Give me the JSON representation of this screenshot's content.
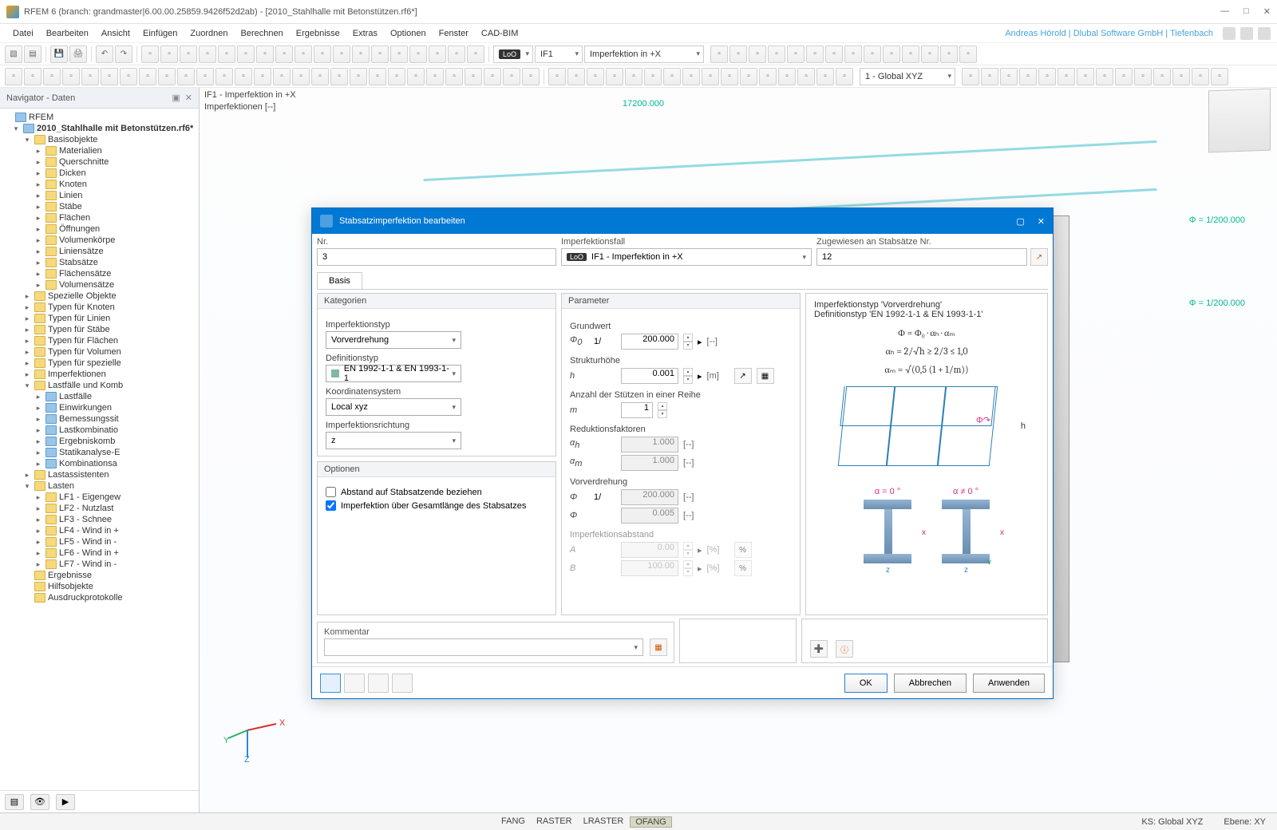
{
  "window": {
    "title": "RFEM 6 (branch: grandmaster|6.00.00.25859.9426f52d2ab) - [2010_Stahlhalle mit Betonstützen.rf6*]"
  },
  "menu": {
    "items": [
      "Datei",
      "Bearbeiten",
      "Ansicht",
      "Einfügen",
      "Zuordnen",
      "Berechnen",
      "Ergebnisse",
      "Extras",
      "Optionen",
      "Fenster",
      "CAD-BIM"
    ],
    "user": "Andreas Hörold | Dlubal Software GmbH | Tiefenbach"
  },
  "toolbar1": {
    "lookup": {
      "label": "IF1",
      "pill": "LoO"
    },
    "combo": "Imperfektion in +X"
  },
  "toolbar2": {
    "coord": "1 - Global XYZ"
  },
  "navigator": {
    "title": "Navigator - Daten",
    "root": "RFEM",
    "model": "2010_Stahlhalle mit Betonstützen.rf6*",
    "basis": "Basisobjekte",
    "basisItems": [
      "Materialien",
      "Querschnitte",
      "Dicken",
      "Knoten",
      "Linien",
      "Stäbe",
      "Flächen",
      "Öffnungen",
      "Volumenkörpe",
      "Liniensätze",
      "Stabsätze",
      "Flächensätze",
      "Volumensätze"
    ],
    "topFolders": [
      "Spezielle Objekte",
      "Typen für Knoten",
      "Typen für Linien",
      "Typen für Stäbe",
      "Typen für Flächen",
      "Typen für Volumen",
      "Typen für spezielle",
      "Imperfektionen"
    ],
    "lastfall": "Lastfälle und Komb",
    "lastfallItems": [
      "Lastfälle",
      "Einwirkungen",
      "Bemessungssit",
      "Lastkombinatio",
      "Ergebniskomb",
      "Statikanalyse-E",
      "Kombinationsa"
    ],
    "lastass": "Lastassistenten",
    "lasten": "Lasten",
    "lastenItems": [
      "LF1 - Eigengew",
      "LF2 - Nutzlast",
      "LF3 - Schnee",
      "LF4 - Wind in +",
      "LF5 - Wind in -",
      "LF6 - Wind in +",
      "LF7 - Wind in -"
    ],
    "bottom": [
      "Ergebnisse",
      "Hilfsobjekte",
      "Ausdruckprotokolle"
    ]
  },
  "context": {
    "l1": "IF1 - Imperfektion in +X",
    "l2": "Imperfektionen [--]"
  },
  "annotations": {
    "phi1": "Φ = 1/200.000",
    "phi2": "Φ = 1/200.000",
    "dim": "17200.000"
  },
  "dialog": {
    "title": "Stabsatzimperfektion bearbeiten",
    "nr": {
      "label": "Nr.",
      "value": "3"
    },
    "case": {
      "label": "Imperfektionsfall",
      "pill": "LoO",
      "value": "IF1 - Imperfektion in +X"
    },
    "assign": {
      "label": "Zugewiesen an Stabsätze Nr.",
      "value": "12"
    },
    "tab": "Basis",
    "cat": {
      "hd": "Kategorien",
      "typ_lbl": "Imperfektionstyp",
      "typ": "Vorverdrehung",
      "def_lbl": "Definitionstyp",
      "def": "EN 1992-1-1 & EN 1993-1-1",
      "coord_lbl": "Koordinatensystem",
      "coord": "Local xyz",
      "dir_lbl": "Imperfektionsrichtung",
      "dir": "z"
    },
    "opt": {
      "hd": "Optionen",
      "c1": "Abstand auf Stabsatzende beziehen",
      "c2": "Imperfektion über Gesamtlänge des Stabsatzes"
    },
    "par": {
      "hd": "Parameter",
      "grund": "Grundwert",
      "phi0": {
        "v": "200.000",
        "u": "[--]"
      },
      "hohe": "Strukturhöhe",
      "h": {
        "v": "0.001",
        "u": "[m]"
      },
      "stutz": "Anzahl der Stützen in einer Reihe",
      "m": {
        "v": "1"
      },
      "reduk": "Reduktionsfaktoren",
      "ah": {
        "v": "1.000",
        "u": "[--]"
      },
      "am": {
        "v": "1.000",
        "u": "[--]"
      },
      "vor": "Vorverdrehung",
      "phi": {
        "v": "200.000",
        "u": "[--]"
      },
      "phiv": {
        "v": "0.005",
        "u": "[--]"
      },
      "abst": "Imperfektionsabstand",
      "A": {
        "v": "0.00",
        "u": "[%]"
      },
      "B": {
        "v": "100.00",
        "u": "[%]"
      }
    },
    "info": {
      "l1": "Imperfektionstyp 'Vorverdrehung'",
      "l2": "Definitionstyp 'EN 1992-1-1 & EN 1993-1-1'",
      "eq1": "Φ = Φ₀ · αₕ · αₘ",
      "eq2": "αₕ = 2/√h   ≥ 2/3  ≤ 1,0",
      "eq3": "αₘ = √(0,5 (1 + 1/m))",
      "a0": "α = 0 °",
      "an": "α ≠ 0 °"
    },
    "comment": {
      "hd": "Kommentar"
    },
    "btns": {
      "ok": "OK",
      "cancel": "Abbrechen",
      "apply": "Anwenden"
    }
  },
  "status": {
    "items": [
      "FANG",
      "RASTER",
      "LRASTER",
      "OFANG"
    ],
    "ks": "KS: Global XYZ",
    "eb": "Ebene: XY"
  }
}
